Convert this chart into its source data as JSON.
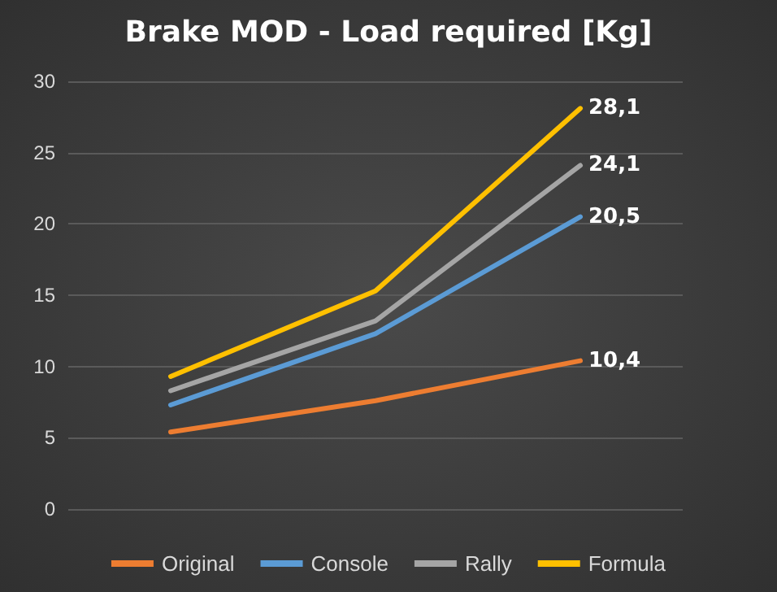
{
  "chart_data": {
    "type": "line",
    "title": "Brake MOD - Load required [Kg]",
    "categories": [
      null,
      null,
      null
    ],
    "series": [
      {
        "name": "Original",
        "color": "#ed7d31",
        "values": [
          5.4,
          7.6,
          10.4
        ],
        "value_labels": [
          null,
          null,
          "10,4"
        ]
      },
      {
        "name": "Console",
        "color": "#5b9bd5",
        "values": [
          7.3,
          12.3,
          20.5
        ],
        "value_labels": [
          null,
          null,
          "20,5"
        ]
      },
      {
        "name": "Rally",
        "color": "#a5a5a5",
        "values": [
          8.3,
          13.2,
          24.1
        ],
        "value_labels": [
          null,
          null,
          "24,1"
        ]
      },
      {
        "name": "Formula",
        "color": "#ffc000",
        "values": [
          9.3,
          15.3,
          28.1
        ],
        "value_labels": [
          null,
          null,
          "28,1"
        ]
      }
    ],
    "ylim": [
      0,
      30
    ],
    "yticks": [
      0,
      5,
      10,
      15,
      20,
      25,
      30
    ],
    "grid": "y",
    "legend": "bottom",
    "marker": "none",
    "line_style": "solid"
  }
}
